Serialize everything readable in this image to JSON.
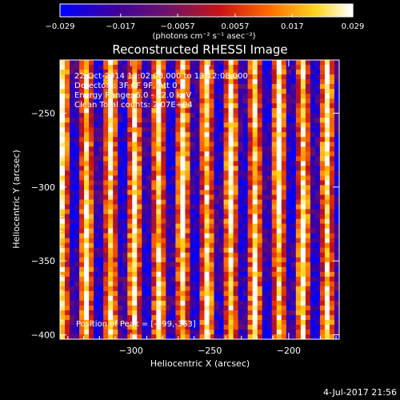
{
  "chart_data": {
    "type": "heatmap",
    "title": "Reconstructed RHESSI Image",
    "xlabel": "Heliocentric X (arcsec)",
    "ylabel": "Heliocentric Y (arcsec)",
    "xlim": [
      -345,
      -168
    ],
    "ylim": [
      -403,
      -214
    ],
    "x_ticks": [
      -300,
      -250,
      -200
    ],
    "y_ticks": [
      -250,
      -300,
      -350,
      -400
    ],
    "grid": false,
    "colormap": "rainbow-heat (blue-purple-red-orange-yellow-white)",
    "pattern": "vertical stripes of alternating intensity",
    "colorbar": {
      "position": "top",
      "range": [
        -0.029,
        0.029
      ],
      "tick_labels": [
        "−0.029",
        "−0.017",
        "−0.0057",
        "0.0057",
        "0.017",
        "0.029"
      ],
      "tick_values": [
        -0.029,
        -0.017,
        -0.0057,
        0.0057,
        0.017,
        0.029
      ],
      "unit_label": "(photons cm⁻² s⁻¹ asec⁻²)"
    },
    "info_lines": [
      "22-Oct-2014 13:02:08.000 to 13:12:08.000",
      "Detectors: 3F 6F 9F, Att 0",
      "Energy Range: 6.0 - 12.0 keV",
      "Clean    Total counts: 2.07E+04"
    ],
    "peak_label": "Position of Peak = [-199,-363]",
    "peak_position": [
      -199,
      -363
    ]
  },
  "footer": {
    "timestamp": "4-Jul-2017 21:56"
  }
}
